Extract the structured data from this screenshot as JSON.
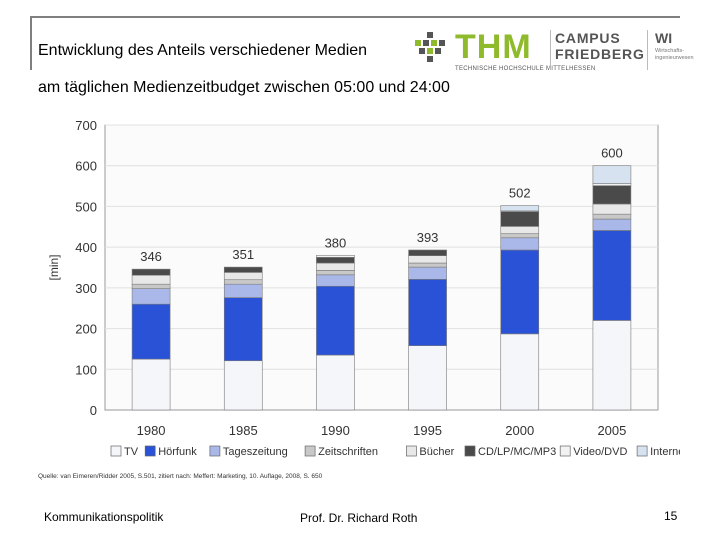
{
  "slide": {
    "title_line1": "Entwicklung des Anteils verschiedener Medien",
    "title_line2": "am täglichen Medienzeitbudget zwischen 05:00 und 24:00",
    "source": "Quelle: van Eimeren/Ridder 2005, S.501, zitiert nach: Meffert: Marketing, 10. Auflage, 2008, S. 650",
    "footer_left": "Kommunikationspolitik",
    "footer_center": "Prof. Dr. Richard Roth",
    "page_number": "15"
  },
  "logo": {
    "thm": "THM",
    "thm_sub": "TECHNISCHE HOCHSCHULE MITTELHESSEN",
    "campus_line1": "CAMPUS",
    "campus_line2": "FRIEDBERG",
    "wi": "WI",
    "wi_sub1": "Wirtschafts-",
    "wi_sub2": "ingenieurwesen",
    "colors": {
      "green": "#8fba2c",
      "gray": "#555555"
    }
  },
  "chart_data": {
    "type": "bar",
    "stacked": true,
    "ylabel": "[min]",
    "ylim": [
      0,
      700
    ],
    "yticks": [
      "0",
      "100",
      "200",
      "300",
      "400",
      "500",
      "600",
      "700"
    ],
    "categories": [
      "1980",
      "1985",
      "1990",
      "1995",
      "2000",
      "2005"
    ],
    "totals": [
      346,
      351,
      380,
      393,
      502,
      600
    ],
    "total_labels": [
      "346",
      "351",
      "380",
      "393",
      "502",
      "600"
    ],
    "series": [
      {
        "name": "TV",
        "color": "#f4f6fa",
        "values": [
          125,
          121,
          135,
          158,
          187,
          220
        ]
      },
      {
        "name": "Hörfunk",
        "color": "#2a52d6",
        "values": [
          135,
          155,
          169,
          163,
          206,
          221
        ]
      },
      {
        "name": "Tageszeitung",
        "color": "#a9b8e8",
        "values": [
          38,
          33,
          28,
          30,
          30,
          28
        ]
      },
      {
        "name": "Zeitschriften",
        "color": "#c8c8c8",
        "values": [
          11,
          11,
          11,
          10,
          10,
          12
        ]
      },
      {
        "name": "Bücher",
        "color": "#e8e8e8",
        "values": [
          22,
          18,
          18,
          18,
          18,
          25
        ]
      },
      {
        "name": "CD/LP/MC/MP3",
        "color": "#4a4a4a",
        "values": [
          15,
          13,
          14,
          14,
          36,
          45
        ]
      },
      {
        "name": "Video/DVD",
        "color": "#f2f2f2",
        "values": [
          0,
          0,
          5,
          0,
          2,
          5
        ]
      },
      {
        "name": "Internet",
        "color": "#d6e2f0",
        "values": [
          0,
          0,
          0,
          0,
          13,
          44
        ]
      }
    ],
    "legend": [
      {
        "label": "TV",
        "color": "#f4f6fa"
      },
      {
        "label": "Hörfunk",
        "color": "#2a52d6"
      },
      {
        "label": "Tageszeitung",
        "color": "#a9b8e8"
      },
      {
        "label": "Zeitschriften",
        "color": "#c8c8c8"
      },
      {
        "label": "Bücher",
        "color": "#e8e8e8"
      },
      {
        "label": "CD/LP/MC/MP3",
        "color": "#4a4a4a"
      },
      {
        "label": "Video/DVD",
        "color": "#f2f2f2"
      },
      {
        "label": "Internet",
        "color": "#d6e2f0"
      }
    ],
    "legend_position": "bottom",
    "grid": true
  }
}
